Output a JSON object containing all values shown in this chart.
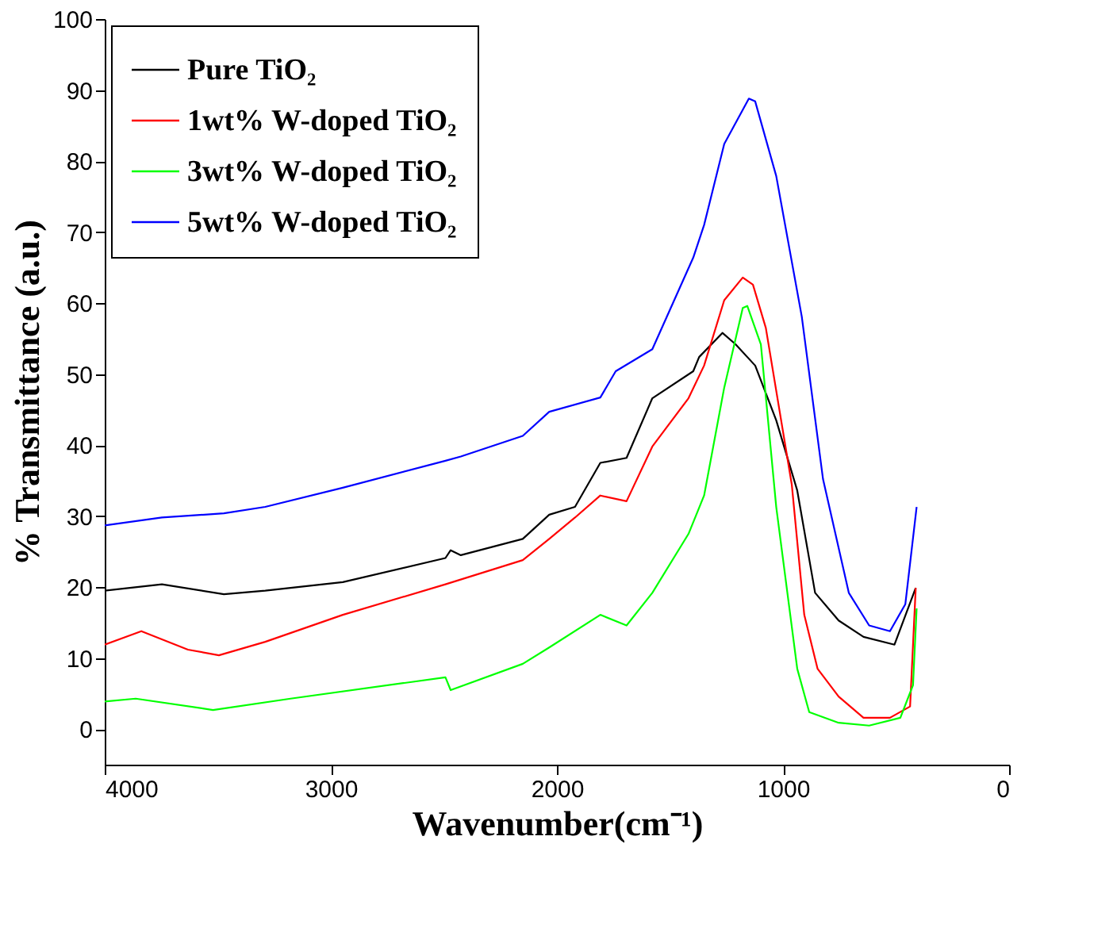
{
  "chart_data": {
    "type": "line",
    "xlabel": "Wavenumber(cm⁻¹)",
    "ylabel": "% Transmittance (a.u.)",
    "xlim": [
      4000,
      0
    ],
    "xticks": [
      4000,
      3000,
      2000,
      1000,
      0
    ],
    "ylim": [
      -5,
      100
    ],
    "yticks": [
      0,
      10,
      20,
      30,
      40,
      50,
      60,
      70,
      80,
      90,
      100
    ],
    "grid": false,
    "legend": "top left",
    "line_style": "solid",
    "series": [
      {
        "name": "Pure TiO₂",
        "color": "#000000",
        "x": [
          4000,
          3747,
          3473,
          3290,
          2947,
          2493,
          2470,
          2425,
          2151,
          2034,
          1920,
          1808,
          1692,
          1578,
          1397,
          1371,
          1268,
          1210,
          1123,
          1030,
          937,
          858,
          754,
          644,
          507,
          413
        ],
        "values": [
          19.5,
          20.4,
          19.0,
          19.5,
          20.7,
          24.1,
          25.2,
          24.5,
          26.8,
          30.2,
          31.3,
          37.5,
          38.2,
          46.6,
          50.4,
          52.4,
          55.8,
          54.2,
          51.2,
          43.5,
          33.6,
          19.2,
          15.3,
          13.0,
          11.9,
          19.9
        ]
      },
      {
        "name": "1wt% W-doped TiO₂",
        "color": "#ff0000",
        "x": [
          4000,
          3838,
          3632,
          3495,
          3290,
          2947,
          2493,
          2151,
          2034,
          1920,
          1808,
          1692,
          1578,
          1418,
          1349,
          1260,
          1178,
          1133,
          1076,
          961,
          906,
          847,
          754,
          644,
          527,
          438,
          413
        ],
        "values": [
          11.9,
          13.8,
          11.2,
          10.4,
          12.3,
          16.1,
          20.4,
          23.8,
          26.8,
          29.8,
          32.9,
          32.1,
          39.8,
          46.6,
          51.2,
          60.4,
          63.6,
          62.6,
          56.5,
          34.4,
          16.1,
          8.5,
          4.6,
          1.6,
          1.6,
          3.2,
          19.9
        ]
      },
      {
        "name": "3wt% W-doped TiO₂",
        "color": "#00ff00",
        "x": [
          4000,
          3863,
          3521,
          3178,
          2493,
          2470,
          2151,
          2034,
          1808,
          1692,
          1578,
          1418,
          1349,
          1260,
          1178,
          1158,
          1098,
          1030,
          937,
          884,
          754,
          619,
          481,
          425,
          409
        ],
        "values": [
          3.9,
          4.3,
          2.7,
          4.3,
          7.3,
          5.5,
          9.2,
          11.5,
          16.1,
          14.6,
          19.2,
          27.5,
          32.9,
          48.1,
          59.3,
          59.6,
          54.2,
          31.3,
          8.5,
          2.4,
          0.9,
          0.5,
          1.6,
          6.2,
          17.0
        ]
      },
      {
        "name": "5wt% W-doped TiO₂",
        "color": "#0000ff",
        "x": [
          4000,
          3747,
          3473,
          3290,
          2947,
          2493,
          2425,
          2151,
          2034,
          1808,
          1740,
          1578,
          1397,
          1349,
          1260,
          1151,
          1123,
          1030,
          917,
          823,
          709,
          619,
          527,
          459,
          409
        ],
        "values": [
          28.7,
          29.8,
          30.4,
          31.3,
          34.0,
          37.8,
          38.4,
          41.3,
          44.7,
          46.7,
          50.4,
          53.5,
          66.4,
          71.0,
          82.4,
          88.8,
          88.4,
          77.9,
          58.1,
          35.2,
          19.2,
          14.6,
          13.8,
          17.6,
          31.3
        ]
      }
    ]
  }
}
